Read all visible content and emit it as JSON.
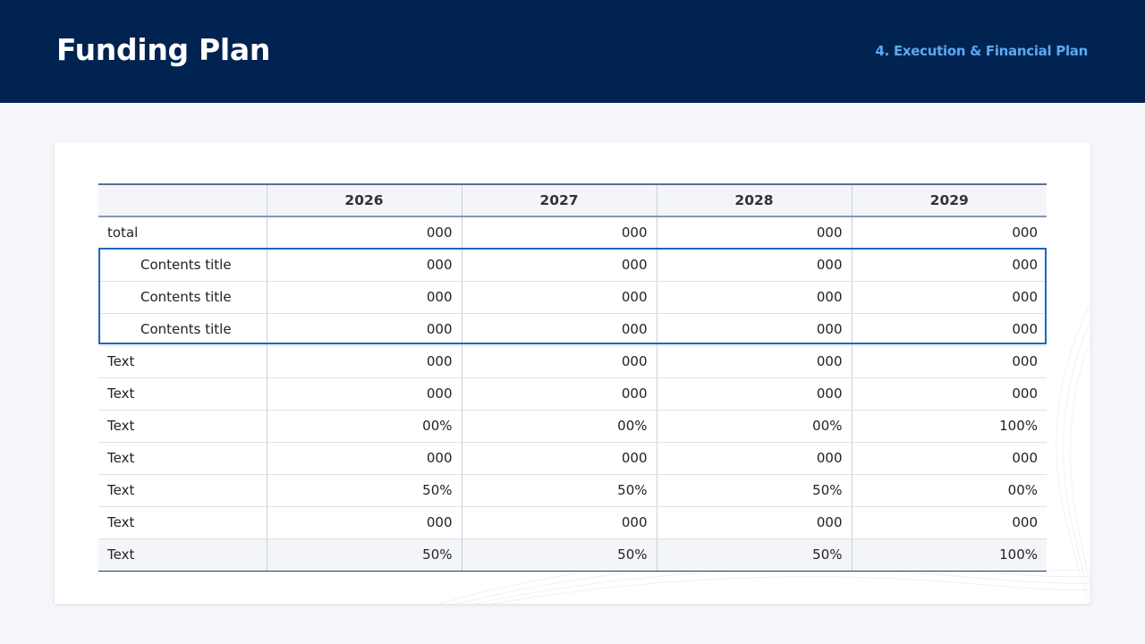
{
  "header": {
    "title": "Funding Plan",
    "section": "4. Execution & Financial Plan",
    "background_color": "#002352",
    "section_color": "#5aa9f2"
  },
  "table": {
    "columns": [
      "",
      "2026",
      "2027",
      "2028",
      "2029"
    ],
    "highlight_color": "#1f66c2",
    "rows": [
      {
        "label": "total",
        "indent": false,
        "values": [
          "000",
          "000",
          "000",
          "000"
        ]
      },
      {
        "label": "Contents title",
        "indent": true,
        "values": [
          "000",
          "000",
          "000",
          "000"
        ]
      },
      {
        "label": "Contents title",
        "indent": true,
        "values": [
          "000",
          "000",
          "000",
          "000"
        ]
      },
      {
        "label": "Contents title",
        "indent": true,
        "values": [
          "000",
          "000",
          "000",
          "000"
        ]
      },
      {
        "label": "Text",
        "indent": false,
        "values": [
          "000",
          "000",
          "000",
          "000"
        ]
      },
      {
        "label": "Text",
        "indent": false,
        "values": [
          "000",
          "000",
          "000",
          "000"
        ]
      },
      {
        "label": "Text",
        "indent": false,
        "values": [
          "00%",
          "00%",
          "00%",
          "100%"
        ]
      },
      {
        "label": "Text",
        "indent": false,
        "values": [
          "000",
          "000",
          "000",
          "000"
        ]
      },
      {
        "label": "Text",
        "indent": false,
        "values": [
          "50%",
          "50%",
          "50%",
          "00%"
        ]
      },
      {
        "label": "Text",
        "indent": false,
        "values": [
          "000",
          "000",
          "000",
          "000"
        ]
      },
      {
        "label": "Text",
        "indent": false,
        "values": [
          "50%",
          "50%",
          "50%",
          "100%"
        ]
      }
    ]
  }
}
